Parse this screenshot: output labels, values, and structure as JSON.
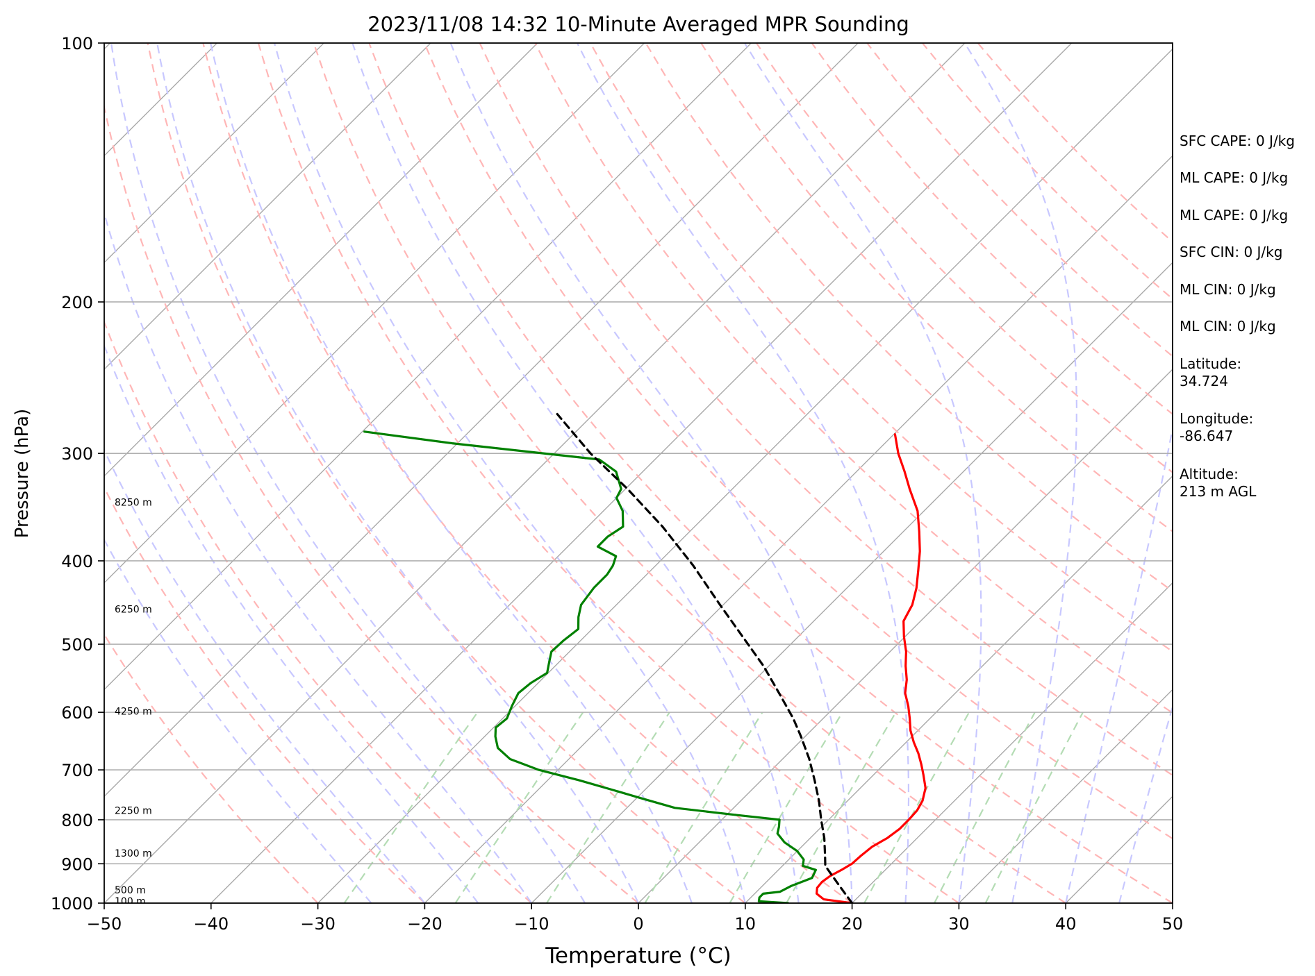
{
  "chart_data": {
    "type": "line",
    "title": "2023/11/08 14:32 10-Minute Averaged MPR Sounding",
    "xlabel": "Temperature (°C)",
    "ylabel": "Pressure (hPa)",
    "xlim": [
      -50,
      50
    ],
    "ylim": [
      1000,
      100
    ],
    "y_scale": "log",
    "x_ticks": [
      -50,
      -40,
      -30,
      -20,
      -10,
      0,
      10,
      20,
      30,
      40,
      50
    ],
    "x_tick_labels": [
      "−50",
      "−40",
      "−30",
      "−20",
      "−10",
      "0",
      "10",
      "20",
      "30",
      "40",
      "50"
    ],
    "y_ticks": [
      100,
      200,
      300,
      400,
      500,
      600,
      700,
      800,
      900,
      1000
    ],
    "y_tick_labels": [
      "100",
      "200",
      "300",
      "400",
      "500",
      "600",
      "700",
      "800",
      "900",
      "1000"
    ],
    "grid": "horizontal isobars at y ticks",
    "skew_degrees": 45,
    "series": [
      {
        "key": "temperature",
        "color": "#ff0000",
        "style": "solid",
        "points": [
          [
            20.0,
            1000
          ],
          [
            17.0,
            990
          ],
          [
            15.8,
            975
          ],
          [
            15.3,
            960
          ],
          [
            15.2,
            945
          ],
          [
            15.4,
            930
          ],
          [
            15.9,
            915
          ],
          [
            16.3,
            900
          ],
          [
            16.4,
            880
          ],
          [
            16.6,
            860
          ],
          [
            17.2,
            840
          ],
          [
            17.5,
            820
          ],
          [
            17.5,
            800
          ],
          [
            17.4,
            780
          ],
          [
            17.0,
            760
          ],
          [
            16.1,
            735
          ],
          [
            14.7,
            710
          ],
          [
            13.5,
            690
          ],
          [
            12.2,
            670
          ],
          [
            10.7,
            650
          ],
          [
            9.3,
            630
          ],
          [
            8.1,
            610
          ],
          [
            6.8,
            590
          ],
          [
            5.3,
            570
          ],
          [
            4.2,
            550
          ],
          [
            2.8,
            530
          ],
          [
            1.5,
            510
          ],
          [
            -0.1,
            490
          ],
          [
            -1.6,
            470
          ],
          [
            -2.3,
            450
          ],
          [
            -3.5,
            430
          ],
          [
            -5.0,
            410
          ],
          [
            -6.6,
            390
          ],
          [
            -8.5,
            370
          ],
          [
            -10.6,
            350
          ],
          [
            -13.4,
            330
          ],
          [
            -15.5,
            315
          ],
          [
            -17.8,
            300
          ],
          [
            -19.9,
            285
          ]
        ]
      },
      {
        "key": "dewpoint",
        "color": "#008000",
        "style": "solid",
        "points": [
          [
            14.0,
            1000
          ],
          [
            11.1,
            995
          ],
          [
            10.8,
            985
          ],
          [
            10.8,
            975
          ],
          [
            12.2,
            970
          ],
          [
            12.7,
            955
          ],
          [
            13.9,
            935
          ],
          [
            13.5,
            915
          ],
          [
            11.9,
            905
          ],
          [
            11.4,
            890
          ],
          [
            10.0,
            870
          ],
          [
            8.0,
            850
          ],
          [
            6.5,
            830
          ],
          [
            6.0,
            815
          ],
          [
            5.4,
            800
          ],
          [
            1.0,
            790
          ],
          [
            -5.5,
            775
          ],
          [
            -9.6,
            755
          ],
          [
            -12.7,
            740
          ],
          [
            -17.0,
            720
          ],
          [
            -21.8,
            700
          ],
          [
            -25.5,
            680
          ],
          [
            -27.7,
            660
          ],
          [
            -29.0,
            640
          ],
          [
            -29.8,
            625
          ],
          [
            -29.6,
            610
          ],
          [
            -30.3,
            590
          ],
          [
            -30.9,
            570
          ],
          [
            -30.7,
            555
          ],
          [
            -30.1,
            540
          ],
          [
            -30.9,
            525
          ],
          [
            -31.7,
            510
          ],
          [
            -31.6,
            495
          ],
          [
            -31.3,
            480
          ],
          [
            -32.4,
            465
          ],
          [
            -33.3,
            450
          ],
          [
            -33.7,
            430
          ],
          [
            -33.7,
            415
          ],
          [
            -34.0,
            405
          ],
          [
            -34.6,
            395
          ],
          [
            -37.2,
            385
          ],
          [
            -37.2,
            375
          ],
          [
            -36.7,
            365
          ],
          [
            -38.2,
            350
          ],
          [
            -40.0,
            338
          ],
          [
            -40.4,
            330
          ],
          [
            -42.5,
            315
          ],
          [
            -45.2,
            305
          ],
          [
            -60.5,
            292
          ],
          [
            -69.8,
            283
          ]
        ]
      },
      {
        "key": "parcel",
        "color": "#000000",
        "style": "dashed",
        "points": [
          [
            20.0,
            1000
          ],
          [
            16.9,
            950
          ],
          [
            14.0,
            905
          ],
          [
            13.0,
            880
          ],
          [
            11.3,
            840
          ],
          [
            9.3,
            800
          ],
          [
            7.3,
            760
          ],
          [
            5.0,
            720
          ],
          [
            2.5,
            680
          ],
          [
            -0.4,
            640
          ],
          [
            -2.8,
            610
          ],
          [
            -6.5,
            570
          ],
          [
            -10.5,
            530
          ],
          [
            -15.2,
            490
          ],
          [
            -20.3,
            450
          ],
          [
            -26.5,
            405
          ],
          [
            -33.0,
            365
          ],
          [
            -39.8,
            330
          ],
          [
            -46.6,
            300
          ],
          [
            -53.4,
            270
          ]
        ]
      }
    ],
    "height_labels": [
      {
        "text": "8250 m",
        "pressure": 342
      },
      {
        "text": "6250 m",
        "pressure": 455
      },
      {
        "text": "4250 m",
        "pressure": 598
      },
      {
        "text": "2250 m",
        "pressure": 780
      },
      {
        "text": "1300 m",
        "pressure": 875
      },
      {
        "text": "500 m",
        "pressure": 965
      },
      {
        "text": "100 m",
        "pressure": 994
      }
    ],
    "background_lines": {
      "isotherms": {
        "color": "#a9a9a9",
        "values": [
          -150,
          -140,
          -130,
          -120,
          -110,
          -100,
          -90,
          -80,
          -70,
          -60,
          -50,
          -40,
          -30,
          -20,
          -10,
          0,
          10,
          20,
          30,
          40,
          50
        ]
      },
      "dry_adiabats": {
        "color": "#ffb6b6",
        "style": "dashed",
        "surface_temps": [
          -30,
          -20,
          -10,
          0,
          10,
          20,
          30,
          40,
          50,
          60,
          70,
          80,
          90,
          100,
          110,
          120,
          130,
          140,
          150,
          160
        ]
      },
      "moist_adiabats": {
        "color": "#c8c8ff",
        "style": "dashed",
        "surface_temps": [
          -25,
          -20,
          -15,
          -10,
          -5,
          0,
          5,
          10,
          15,
          20,
          25,
          30,
          35,
          40,
          45
        ]
      },
      "mixing_ratio": {
        "color": "#b4dcb4",
        "style": "dashed",
        "g_per_kg": [
          0.4,
          1,
          2,
          4,
          7,
          10,
          16,
          24,
          32
        ]
      }
    }
  },
  "info_panel": {
    "lines": [
      "SFC CAPE: 0 J/kg",
      "ML CAPE: 0 J/kg",
      "ML CAPE: 0 J/kg",
      "SFC CIN: 0 J/kg",
      "ML CIN: 0 J/kg",
      "ML CIN: 0 J/kg"
    ],
    "latitude_label": "Latitude:",
    "latitude_value": "34.724",
    "longitude_label": "Longitude:",
    "longitude_value": "-86.647",
    "altitude_label": "Altitude:",
    "altitude_value": "213 m AGL"
  }
}
